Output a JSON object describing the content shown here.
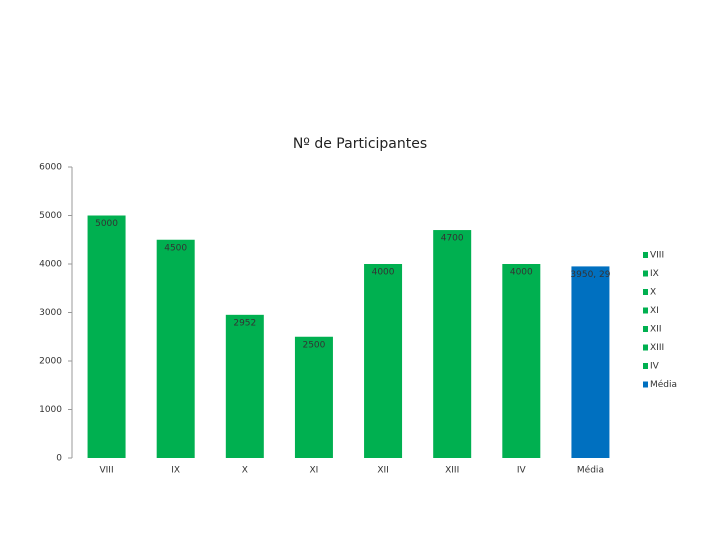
{
  "chart_data": {
    "type": "bar",
    "title": "Nº de Participantes",
    "categories": [
      "VIII",
      "IX",
      "X",
      "XI",
      "XII",
      "XIII",
      "IV",
      "Média"
    ],
    "values": [
      5000,
      4500,
      2952,
      2500,
      4000,
      4700,
      4000,
      3950.29
    ],
    "value_labels": [
      "5000",
      "4500",
      "2952",
      "2500",
      "4000",
      "4700",
      "4000",
      "3950, 29"
    ],
    "colors": [
      "#00b050",
      "#00b050",
      "#00b050",
      "#00b050",
      "#00b050",
      "#00b050",
      "#00b050",
      "#0070c0"
    ],
    "ylim": [
      0,
      6000
    ],
    "yticks": [
      0,
      1000,
      2000,
      3000,
      4000,
      5000,
      6000
    ],
    "legend": "right",
    "grid": false
  }
}
